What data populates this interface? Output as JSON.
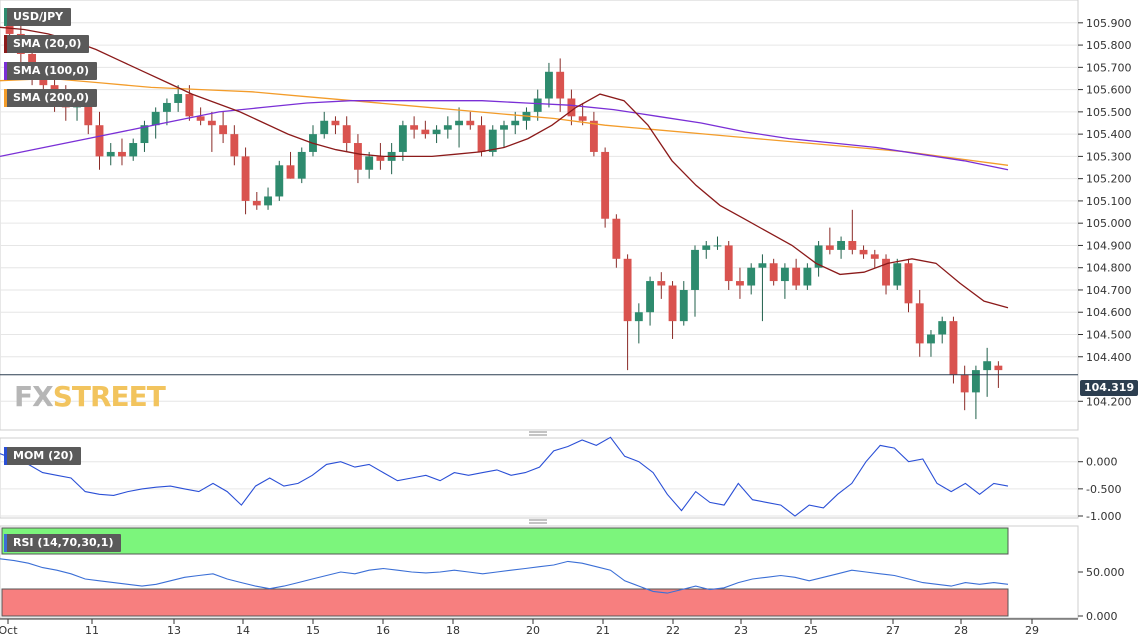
{
  "instrument": "USD/JPY",
  "indicators": {
    "sma20": {
      "label": "SMA (20,0)",
      "color": "#8b1a1a"
    },
    "sma100": {
      "label": "SMA (100,0)",
      "color": "#7a2fd6"
    },
    "sma200": {
      "label": "SMA (200,0)",
      "color": "#f39c2a"
    },
    "mom": {
      "label": "MOM (20)",
      "color": "#2a4fd6"
    },
    "rsi": {
      "label": "RSI (14,70,30,1)",
      "color": "#3b6fd6",
      "overbought": 70,
      "oversold": 30
    }
  },
  "watermark": {
    "fx": "FX",
    "street": "STREET"
  },
  "current_price": "104.319",
  "colors": {
    "up": "#2e8b6e",
    "down": "#d9534f",
    "grid": "#e6e6e6",
    "axis": "#333333"
  },
  "x_axis_labels": [
    "Oct",
    "11",
    "13",
    "14",
    "15",
    "16",
    "18",
    "20",
    "21",
    "22",
    "23",
    "25",
    "27",
    "28",
    "29"
  ],
  "price_axis_labels": [
    "105.900",
    "105.800",
    "105.700",
    "105.600",
    "105.500",
    "105.400",
    "105.300",
    "105.200",
    "105.100",
    "105.000",
    "104.900",
    "104.800",
    "104.700",
    "104.600",
    "104.500",
    "104.400",
    "104.200"
  ],
  "mom_axis_labels": [
    "0.000",
    "-0.500",
    "-1.000"
  ],
  "rsi_axis_labels": [
    "50.000",
    "0.000"
  ],
  "chart_data": {
    "type": "candlestick",
    "title": "USD/JPY",
    "price_range": [
      104.08,
      105.98
    ],
    "candles": [
      [
        105.92,
        105.95,
        105.8,
        105.85
      ],
      [
        105.85,
        105.9,
        105.72,
        105.76
      ],
      [
        105.76,
        105.8,
        105.62,
        105.66
      ],
      [
        105.66,
        105.72,
        105.58,
        105.62
      ],
      [
        105.62,
        105.66,
        105.5,
        105.58
      ],
      [
        105.58,
        105.62,
        105.46,
        105.52
      ],
      [
        105.52,
        105.58,
        105.46,
        105.56
      ],
      [
        105.56,
        105.6,
        105.4,
        105.44
      ],
      [
        105.44,
        105.5,
        105.24,
        105.3
      ],
      [
        105.3,
        105.36,
        105.26,
        105.32
      ],
      [
        105.32,
        105.38,
        105.26,
        105.3
      ],
      [
        105.3,
        105.38,
        105.28,
        105.36
      ],
      [
        105.36,
        105.46,
        105.32,
        105.44
      ],
      [
        105.44,
        105.52,
        105.38,
        105.5
      ],
      [
        105.5,
        105.56,
        105.44,
        105.54
      ],
      [
        105.54,
        105.62,
        105.5,
        105.58
      ],
      [
        105.58,
        105.62,
        105.46,
        105.48
      ],
      [
        105.48,
        105.52,
        105.44,
        105.46
      ],
      [
        105.46,
        105.5,
        105.32,
        105.44
      ],
      [
        105.44,
        105.5,
        105.36,
        105.4
      ],
      [
        105.4,
        105.44,
        105.26,
        105.3
      ],
      [
        105.3,
        105.34,
        105.04,
        105.1
      ],
      [
        105.1,
        105.14,
        105.06,
        105.08
      ],
      [
        105.08,
        105.16,
        105.06,
        105.12
      ],
      [
        105.12,
        105.28,
        105.1,
        105.26
      ],
      [
        105.26,
        105.32,
        105.2,
        105.2
      ],
      [
        105.2,
        105.34,
        105.18,
        105.32
      ],
      [
        105.32,
        105.44,
        105.3,
        105.4
      ],
      [
        105.4,
        105.5,
        105.38,
        105.46
      ],
      [
        105.46,
        105.48,
        105.4,
        105.44
      ],
      [
        105.44,
        105.48,
        105.32,
        105.36
      ],
      [
        105.36,
        105.4,
        105.18,
        105.24
      ],
      [
        105.24,
        105.32,
        105.2,
        105.3
      ],
      [
        105.3,
        105.36,
        105.24,
        105.28
      ],
      [
        105.28,
        105.36,
        105.22,
        105.32
      ],
      [
        105.32,
        105.46,
        105.28,
        105.44
      ],
      [
        105.44,
        105.48,
        105.38,
        105.42
      ],
      [
        105.42,
        105.46,
        105.38,
        105.4
      ],
      [
        105.4,
        105.44,
        105.36,
        105.42
      ],
      [
        105.42,
        105.48,
        105.38,
        105.44
      ],
      [
        105.44,
        105.52,
        105.34,
        105.46
      ],
      [
        105.46,
        105.5,
        105.42,
        105.44
      ],
      [
        105.44,
        105.48,
        105.3,
        105.32
      ],
      [
        105.32,
        105.44,
        105.3,
        105.42
      ],
      [
        105.42,
        105.46,
        105.34,
        105.44
      ],
      [
        105.44,
        105.5,
        105.4,
        105.46
      ],
      [
        105.46,
        105.52,
        105.42,
        105.5
      ],
      [
        105.5,
        105.6,
        105.46,
        105.56
      ],
      [
        105.56,
        105.72,
        105.52,
        105.68
      ],
      [
        105.68,
        105.74,
        105.5,
        105.56
      ],
      [
        105.56,
        105.6,
        105.44,
        105.48
      ],
      [
        105.48,
        105.54,
        105.44,
        105.46
      ],
      [
        105.46,
        105.5,
        105.3,
        105.32
      ],
      [
        105.32,
        105.34,
        104.98,
        105.02
      ],
      [
        105.02,
        105.04,
        104.8,
        104.84
      ],
      [
        104.84,
        104.86,
        104.34,
        104.56
      ],
      [
        104.56,
        104.64,
        104.46,
        104.6
      ],
      [
        104.6,
        104.76,
        104.54,
        104.74
      ],
      [
        104.74,
        104.78,
        104.66,
        104.72
      ],
      [
        104.72,
        104.74,
        104.48,
        104.56
      ],
      [
        104.56,
        104.74,
        104.54,
        104.7
      ],
      [
        104.7,
        104.9,
        104.58,
        104.88
      ],
      [
        104.88,
        104.92,
        104.84,
        104.9
      ],
      [
        104.9,
        104.94,
        104.88,
        104.9
      ],
      [
        104.9,
        104.92,
        104.7,
        104.74
      ],
      [
        104.74,
        104.8,
        104.66,
        104.72
      ],
      [
        104.72,
        104.82,
        104.68,
        104.8
      ],
      [
        104.8,
        104.86,
        104.56,
        104.82
      ],
      [
        104.82,
        104.84,
        104.72,
        104.74
      ],
      [
        104.74,
        104.82,
        104.66,
        104.8
      ],
      [
        104.8,
        104.84,
        104.7,
        104.72
      ],
      [
        104.72,
        104.82,
        104.7,
        104.8
      ],
      [
        104.8,
        104.92,
        104.76,
        104.9
      ],
      [
        104.9,
        104.98,
        104.86,
        104.88
      ],
      [
        104.88,
        104.94,
        104.84,
        104.92
      ],
      [
        104.92,
        105.06,
        104.86,
        104.88
      ],
      [
        104.88,
        104.9,
        104.84,
        104.86
      ],
      [
        104.86,
        104.88,
        104.8,
        104.84
      ],
      [
        104.84,
        104.86,
        104.68,
        104.72
      ],
      [
        104.72,
        104.84,
        104.7,
        104.82
      ],
      [
        104.82,
        104.84,
        104.6,
        104.64
      ],
      [
        104.64,
        104.7,
        104.4,
        104.46
      ],
      [
        104.46,
        104.52,
        104.4,
        104.5
      ],
      [
        104.5,
        104.58,
        104.46,
        104.56
      ],
      [
        104.56,
        104.58,
        104.28,
        104.32
      ],
      [
        104.32,
        104.36,
        104.16,
        104.24
      ],
      [
        104.24,
        104.36,
        104.12,
        104.34
      ],
      [
        104.34,
        104.44,
        104.22,
        104.38
      ],
      [
        104.36,
        104.38,
        104.26,
        104.34
      ]
    ],
    "sma20": [
      105.88,
      105.87,
      105.85,
      105.82,
      105.78,
      105.73,
      105.68,
      105.63,
      105.58,
      105.54,
      105.5,
      105.45,
      105.4,
      105.36,
      105.33,
      105.31,
      105.3,
      105.3,
      105.3,
      105.31,
      105.32,
      105.34,
      105.38,
      105.44,
      105.52,
      105.58,
      105.55,
      105.44,
      105.28,
      105.17,
      105.08,
      105.02,
      104.96,
      104.9,
      104.82,
      104.77,
      104.78,
      104.82,
      104.84,
      104.82,
      104.73,
      104.65,
      104.62
    ],
    "sma100": [
      105.3,
      105.34,
      105.38,
      105.42,
      105.46,
      105.5,
      105.52,
      105.54,
      105.55,
      105.55,
      105.55,
      105.55,
      105.54,
      105.53,
      105.51,
      105.48,
      105.45,
      105.41,
      105.38,
      105.36,
      105.34,
      105.31,
      105.28,
      105.24
    ],
    "sma200": [
      105.64,
      105.65,
      105.63,
      105.61,
      105.6,
      105.59,
      105.57,
      105.55,
      105.53,
      105.51,
      105.49,
      105.47,
      105.44,
      105.42,
      105.4,
      105.38,
      105.36,
      105.34,
      105.32,
      105.29,
      105.26
    ],
    "mom": [
      0.15,
      0.05,
      -0.05,
      -0.2,
      -0.25,
      -0.3,
      -0.55,
      -0.6,
      -0.62,
      -0.55,
      -0.5,
      -0.47,
      -0.45,
      -0.5,
      -0.55,
      -0.4,
      -0.55,
      -0.8,
      -0.45,
      -0.3,
      -0.45,
      -0.4,
      -0.25,
      -0.05,
      0.0,
      -0.1,
      -0.05,
      -0.2,
      -0.35,
      -0.3,
      -0.25,
      -0.35,
      -0.2,
      -0.25,
      -0.2,
      -0.15,
      -0.25,
      -0.2,
      -0.1,
      0.2,
      0.28,
      0.4,
      0.3,
      0.45,
      0.1,
      0.0,
      -0.2,
      -0.6,
      -0.9,
      -0.55,
      -0.75,
      -0.8,
      -0.4,
      -0.7,
      -0.75,
      -0.8,
      -1.0,
      -0.8,
      -0.85,
      -0.6,
      -0.4,
      0.0,
      0.3,
      0.25,
      0.0,
      0.05,
      -0.4,
      -0.55,
      -0.4,
      -0.6,
      -0.4,
      -0.45
    ],
    "rsi": [
      65,
      63,
      60,
      55,
      52,
      48,
      42,
      40,
      38,
      36,
      34,
      36,
      40,
      44,
      46,
      48,
      42,
      38,
      34,
      31,
      34,
      38,
      42,
      46,
      50,
      48,
      52,
      54,
      52,
      50,
      49,
      50,
      52,
      50,
      48,
      50,
      52,
      54,
      56,
      58,
      62,
      60,
      56,
      52,
      40,
      34,
      28,
      26,
      30,
      34,
      30,
      32,
      38,
      42,
      44,
      46,
      44,
      40,
      44,
      48,
      52,
      50,
      48,
      46,
      42,
      38,
      36,
      34,
      38,
      36,
      38,
      36
    ]
  }
}
